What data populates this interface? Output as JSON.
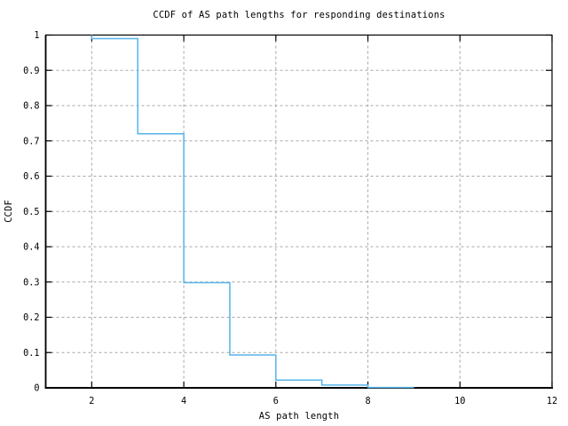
{
  "page": {
    "background": "#ffffff"
  },
  "chart_data": {
    "type": "line",
    "style": "steps",
    "title": "CCDF of AS path lengths for responding destinations",
    "xlabel": "AS path length",
    "ylabel": "CCDF",
    "xlim": [
      1,
      12
    ],
    "ylim": [
      0,
      1
    ],
    "grid": true,
    "legend": "none",
    "axis_color": "#000000",
    "grid_color": "#a6a6a6",
    "x_ticks": [
      {
        "value": 2,
        "label": "2"
      },
      {
        "value": 4,
        "label": "4"
      },
      {
        "value": 6,
        "label": "6"
      },
      {
        "value": 8,
        "label": "8"
      },
      {
        "value": 10,
        "label": "10"
      },
      {
        "value": 12,
        "label": "12"
      }
    ],
    "y_ticks": [
      {
        "value": 0,
        "label": "0"
      },
      {
        "value": 0.1,
        "label": "0.1"
      },
      {
        "value": 0.2,
        "label": "0.2"
      },
      {
        "value": 0.3,
        "label": "0.3"
      },
      {
        "value": 0.4,
        "label": "0.4"
      },
      {
        "value": 0.5,
        "label": "0.5"
      },
      {
        "value": 0.6,
        "label": "0.6"
      },
      {
        "value": 0.7,
        "label": "0.7"
      },
      {
        "value": 0.8,
        "label": "0.8"
      },
      {
        "value": 0.9,
        "label": "0.9"
      },
      {
        "value": 1,
        "label": "1"
      }
    ],
    "series": [
      {
        "name": "ccdf-of-as-path-length",
        "color": "#56b4e9",
        "start_y": 1.0,
        "steps": [
          {
            "x_start": 2,
            "x_end": 3,
            "y": 0.99
          },
          {
            "x_start": 3,
            "x_end": 4,
            "y": 0.72
          },
          {
            "x_start": 4,
            "x_end": 5,
            "y": 0.298
          },
          {
            "x_start": 5,
            "x_end": 6,
            "y": 0.093
          },
          {
            "x_start": 6,
            "x_end": 7,
            "y": 0.022
          },
          {
            "x_start": 7,
            "x_end": 8,
            "y": 0.008
          },
          {
            "x_start": 8,
            "x_end": 9,
            "y": 0.001
          }
        ]
      }
    ]
  }
}
